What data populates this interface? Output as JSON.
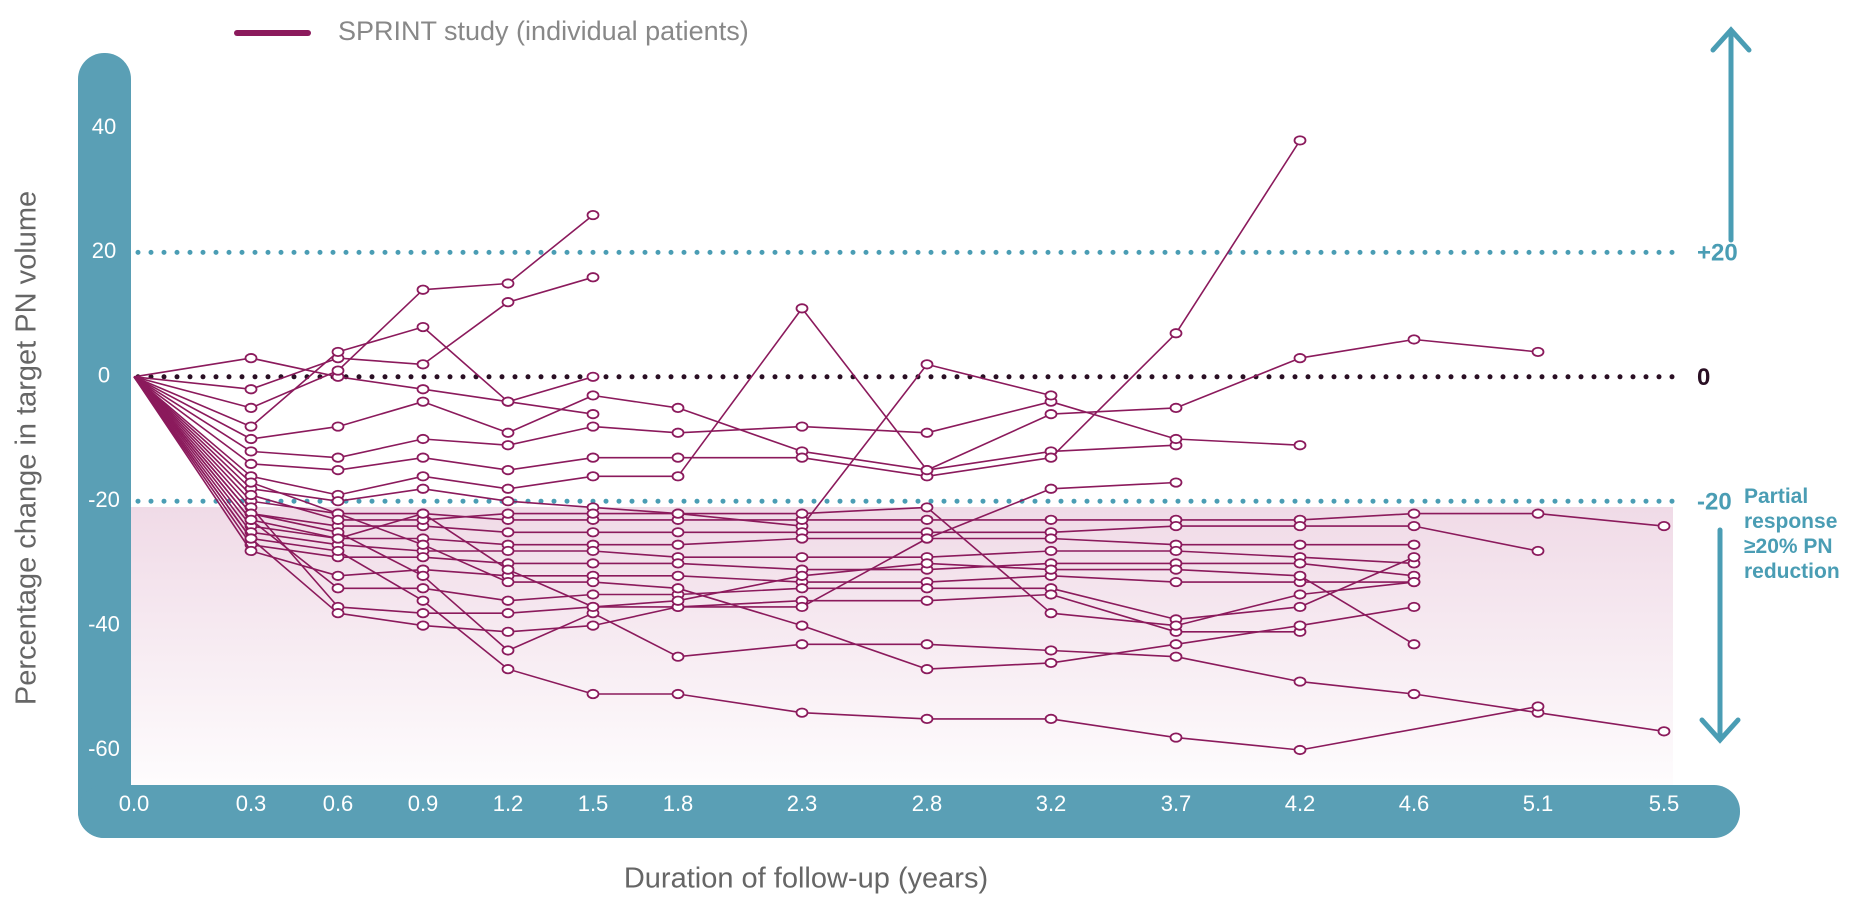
{
  "chart_data": {
    "type": "line",
    "legend": [
      {
        "label": "SPRINT study (individual patients)",
        "color": "#8B1A5C"
      }
    ],
    "xlabel": "Duration of follow-up (years)",
    "ylabel": "Percentage change in target PN volume",
    "x_ticks": [
      "0.0",
      "0.3",
      "0.6",
      "0.9",
      "1.2",
      "1.5",
      "1.8",
      "2.3",
      "2.8",
      "3.2",
      "3.7",
      "4.2",
      "4.6",
      "5.1",
      "5.5"
    ],
    "y_ticks": [
      40,
      20,
      0,
      -20,
      -40,
      -60
    ],
    "ylim": [
      -60,
      40
    ],
    "grid": false,
    "reference_lines": [
      {
        "value": 20,
        "label": "+20",
        "color": "#4A9DB4"
      },
      {
        "value": 0,
        "label": "0",
        "color": "#2A0F24"
      },
      {
        "value": -20,
        "label": "-20",
        "color": "#4A9DB4"
      }
    ],
    "partial_response_label": [
      "Partial",
      "response",
      "≥20% PN",
      "reduction"
    ],
    "colors": {
      "series": "#8B1A5C",
      "axis_band": "#5A9FB5",
      "ref_teal": "#4A9DB4",
      "shade": "#E8C7DA"
    },
    "series": [
      {
        "values": [
          [
            0,
            0
          ],
          [
            0.3,
            3
          ],
          [
            0.6,
            0
          ],
          [
            0.9,
            -2
          ],
          [
            1.2,
            -4
          ],
          [
            1.5,
            -6
          ]
        ]
      },
      {
        "values": [
          [
            0,
            0
          ],
          [
            0.3,
            -2
          ],
          [
            0.6,
            3
          ],
          [
            0.9,
            2
          ],
          [
            1.2,
            12
          ],
          [
            1.5,
            16
          ]
        ]
      },
      {
        "values": [
          [
            0,
            0
          ],
          [
            0.3,
            -5
          ],
          [
            0.6,
            1
          ],
          [
            0.9,
            14
          ],
          [
            1.2,
            15
          ],
          [
            1.5,
            26
          ]
        ]
      },
      {
        "values": [
          [
            0,
            0
          ],
          [
            0.3,
            -8
          ],
          [
            0.6,
            4
          ],
          [
            0.9,
            8
          ],
          [
            1.2,
            -4
          ],
          [
            1.5,
            0
          ]
        ]
      },
      {
        "values": [
          [
            0,
            0
          ],
          [
            0.3,
            -10
          ],
          [
            0.6,
            -8
          ],
          [
            0.9,
            -4
          ],
          [
            1.2,
            -9
          ],
          [
            1.5,
            -3
          ],
          [
            1.8,
            -5
          ],
          [
            2.3,
            -12
          ],
          [
            2.8,
            -15
          ],
          [
            3.2,
            -12
          ],
          [
            3.7,
            -11
          ]
        ]
      },
      {
        "values": [
          [
            0,
            0
          ],
          [
            0.3,
            -12
          ],
          [
            0.6,
            -13
          ],
          [
            0.9,
            -10
          ],
          [
            1.2,
            -11
          ],
          [
            1.5,
            -8
          ],
          [
            1.8,
            -9
          ],
          [
            2.3,
            -8
          ],
          [
            2.8,
            -9
          ],
          [
            3.2,
            -4
          ],
          [
            3.7,
            -10
          ],
          [
            4.2,
            -11
          ]
        ]
      },
      {
        "values": [
          [
            0,
            0
          ],
          [
            0.3,
            -14
          ],
          [
            0.6,
            -15
          ],
          [
            0.9,
            -13
          ],
          [
            1.2,
            -15
          ],
          [
            1.5,
            -13
          ],
          [
            1.8,
            -13
          ],
          [
            2.3,
            -13
          ],
          [
            2.8,
            -16
          ],
          [
            3.2,
            -13
          ],
          [
            3.7,
            7
          ],
          [
            4.2,
            38
          ]
        ]
      },
      {
        "values": [
          [
            0,
            0
          ],
          [
            0.3,
            -16
          ],
          [
            0.6,
            -19
          ],
          [
            0.9,
            -16
          ],
          [
            1.2,
            -18
          ],
          [
            1.5,
            -16
          ],
          [
            1.8,
            -16
          ],
          [
            2.3,
            11
          ],
          [
            2.8,
            -15
          ],
          [
            3.2,
            -6
          ],
          [
            3.7,
            -5
          ],
          [
            4.2,
            3
          ],
          [
            4.6,
            6
          ],
          [
            5.1,
            4
          ]
        ]
      },
      {
        "values": [
          [
            0,
            0
          ],
          [
            0.3,
            -18
          ],
          [
            0.6,
            -20
          ],
          [
            0.9,
            -18
          ],
          [
            1.2,
            -20
          ],
          [
            1.5,
            -21
          ],
          [
            1.8,
            -22
          ],
          [
            2.3,
            -24
          ],
          [
            2.8,
            2
          ],
          [
            3.2,
            -3
          ]
        ]
      },
      {
        "values": [
          [
            0,
            0
          ],
          [
            0.3,
            -20
          ],
          [
            0.6,
            -22
          ],
          [
            0.9,
            -22
          ],
          [
            1.2,
            -23
          ],
          [
            1.5,
            -23
          ],
          [
            1.8,
            -23
          ],
          [
            2.3,
            -23
          ],
          [
            2.8,
            -23
          ],
          [
            3.2,
            -23
          ],
          [
            3.7,
            -23
          ],
          [
            4.2,
            -23
          ],
          [
            4.6,
            -22
          ],
          [
            5.1,
            -22
          ],
          [
            5.5,
            -24
          ]
        ]
      },
      {
        "values": [
          [
            0,
            0
          ],
          [
            0.3,
            -22
          ],
          [
            0.6,
            -24
          ],
          [
            0.9,
            -24
          ],
          [
            1.2,
            -25
          ],
          [
            1.5,
            -25
          ],
          [
            1.8,
            -25
          ],
          [
            2.3,
            -25
          ],
          [
            2.8,
            -25
          ],
          [
            3.2,
            -25
          ],
          [
            3.7,
            -24
          ],
          [
            4.2,
            -24
          ],
          [
            4.6,
            -24
          ],
          [
            5.1,
            -28
          ]
        ]
      },
      {
        "values": [
          [
            0,
            0
          ],
          [
            0.3,
            -24
          ],
          [
            0.6,
            -26
          ],
          [
            0.9,
            -26
          ],
          [
            1.2,
            -27
          ],
          [
            1.5,
            -27
          ],
          [
            1.8,
            -27
          ],
          [
            2.3,
            -26
          ],
          [
            2.8,
            -26
          ],
          [
            3.2,
            -26
          ],
          [
            3.7,
            -27
          ],
          [
            4.2,
            -27
          ],
          [
            4.6,
            -27
          ]
        ]
      },
      {
        "values": [
          [
            0,
            0
          ],
          [
            0.3,
            -25
          ],
          [
            0.6,
            -27
          ],
          [
            0.9,
            -28
          ],
          [
            1.2,
            -28
          ],
          [
            1.5,
            -28
          ],
          [
            1.8,
            -29
          ],
          [
            2.3,
            -29
          ],
          [
            2.8,
            -29
          ],
          [
            3.2,
            -28
          ],
          [
            3.7,
            -28
          ],
          [
            4.2,
            -29
          ],
          [
            4.6,
            -30
          ]
        ]
      },
      {
        "values": [
          [
            0,
            0
          ],
          [
            0.3,
            -27
          ],
          [
            0.6,
            -29
          ],
          [
            0.9,
            -29
          ],
          [
            1.2,
            -30
          ],
          [
            1.5,
            -30
          ],
          [
            1.8,
            -30
          ],
          [
            2.3,
            -31
          ],
          [
            2.8,
            -31
          ],
          [
            3.2,
            -30
          ],
          [
            3.7,
            -30
          ],
          [
            4.2,
            -30
          ],
          [
            4.6,
            -32
          ]
        ]
      },
      {
        "values": [
          [
            0,
            0
          ],
          [
            0.3,
            -28
          ],
          [
            0.6,
            -32
          ],
          [
            0.9,
            -31
          ],
          [
            1.2,
            -32
          ],
          [
            1.5,
            -32
          ],
          [
            1.8,
            -32
          ],
          [
            2.3,
            -33
          ],
          [
            2.8,
            -33
          ],
          [
            3.2,
            -32
          ],
          [
            3.7,
            -33
          ],
          [
            4.2,
            -33
          ],
          [
            4.6,
            -33
          ]
        ]
      },
      {
        "values": [
          [
            0,
            0
          ],
          [
            0.3,
            -23
          ],
          [
            0.6,
            -34
          ],
          [
            0.9,
            -34
          ],
          [
            1.2,
            -36
          ],
          [
            1.5,
            -35
          ],
          [
            1.8,
            -35
          ],
          [
            2.3,
            -34
          ],
          [
            2.8,
            -34
          ],
          [
            3.2,
            -34
          ],
          [
            3.7,
            -39
          ],
          [
            4.2,
            -37
          ],
          [
            4.6,
            -29
          ]
        ]
      },
      {
        "values": [
          [
            0,
            0
          ],
          [
            0.3,
            -21
          ],
          [
            0.6,
            -37
          ],
          [
            0.9,
            -38
          ],
          [
            1.2,
            -38
          ],
          [
            1.5,
            -37
          ],
          [
            1.8,
            -37
          ],
          [
            2.3,
            -36
          ],
          [
            2.8,
            -36
          ],
          [
            3.2,
            -35
          ],
          [
            3.7,
            -41
          ],
          [
            4.2,
            -41
          ]
        ]
      },
      {
        "values": [
          [
            0,
            0
          ],
          [
            0.3,
            -26
          ],
          [
            0.6,
            -38
          ],
          [
            0.9,
            -40
          ],
          [
            1.2,
            -41
          ],
          [
            1.5,
            -40
          ],
          [
            1.8,
            -37
          ],
          [
            2.3,
            -37
          ],
          [
            2.8,
            -26
          ],
          [
            3.2,
            -18
          ],
          [
            3.7,
            -17
          ]
        ]
      },
      {
        "values": [
          [
            0,
            0
          ],
          [
            0.3,
            -22
          ],
          [
            0.6,
            -25
          ],
          [
            0.9,
            -32
          ],
          [
            1.2,
            -44
          ],
          [
            1.5,
            -38
          ],
          [
            1.8,
            -45
          ],
          [
            2.3,
            -43
          ],
          [
            2.8,
            -43
          ],
          [
            3.2,
            -44
          ],
          [
            3.7,
            -45
          ],
          [
            4.2,
            -49
          ],
          [
            4.6,
            -51
          ],
          [
            5.1,
            -54
          ],
          [
            5.5,
            -57
          ]
        ]
      },
      {
        "values": [
          [
            0,
            0
          ],
          [
            0.3,
            -26
          ],
          [
            0.6,
            -28
          ],
          [
            0.9,
            -36
          ],
          [
            1.2,
            -47
          ],
          [
            1.5,
            -51
          ],
          [
            1.8,
            -51
          ],
          [
            2.3,
            -54
          ],
          [
            2.8,
            -55
          ],
          [
            3.2,
            -55
          ],
          [
            3.7,
            -58
          ],
          [
            4.2,
            -60
          ],
          [
            5.1,
            -53
          ]
        ]
      },
      {
        "values": [
          [
            0,
            0
          ],
          [
            0.3,
            -17
          ],
          [
            0.6,
            -22
          ],
          [
            0.9,
            -27
          ],
          [
            1.2,
            -33
          ],
          [
            1.5,
            -33
          ],
          [
            1.8,
            -34
          ],
          [
            2.3,
            -40
          ],
          [
            2.8,
            -47
          ],
          [
            3.2,
            -46
          ],
          [
            3.7,
            -43
          ],
          [
            4.2,
            -40
          ],
          [
            4.6,
            -37
          ]
        ]
      },
      {
        "values": [
          [
            0,
            0
          ],
          [
            0.3,
            -19
          ],
          [
            0.6,
            -23
          ],
          [
            0.9,
            -23
          ],
          [
            1.2,
            -22
          ],
          [
            1.5,
            -22
          ],
          [
            1.8,
            -22
          ],
          [
            2.3,
            -22
          ],
          [
            2.8,
            -21
          ],
          [
            3.2,
            -38
          ],
          [
            3.7,
            -40
          ],
          [
            4.2,
            -35
          ],
          [
            4.6,
            -33
          ]
        ]
      },
      {
        "values": [
          [
            0,
            0
          ],
          [
            0.3,
            -23
          ],
          [
            0.6,
            -26
          ],
          [
            0.9,
            -22
          ],
          [
            1.2,
            -31
          ],
          [
            1.5,
            -37
          ],
          [
            1.8,
            -36
          ],
          [
            2.3,
            -32
          ],
          [
            2.8,
            -30
          ],
          [
            3.2,
            -31
          ],
          [
            3.7,
            -31
          ],
          [
            4.2,
            -32
          ],
          [
            4.6,
            -43
          ]
        ]
      }
    ]
  }
}
